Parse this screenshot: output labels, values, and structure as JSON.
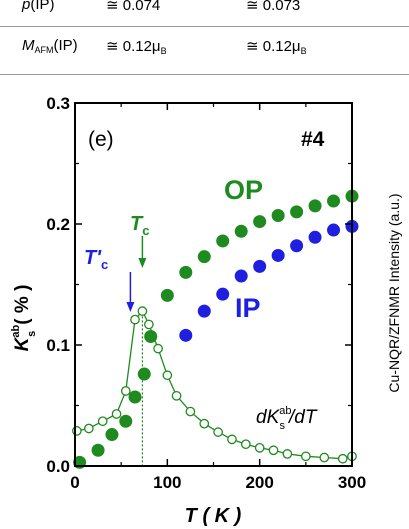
{
  "table": {
    "rows": [
      {
        "param_symbol": "p",
        "param_paren": "(IP)",
        "val1": "≅ 0.074",
        "val2": "≅ 0.073"
      },
      {
        "param_symbol": "M",
        "param_sub": "AFM",
        "param_paren": "(IP)",
        "val1": "≅ 0.12μ",
        "val1_sub": "B",
        "val2": "≅ 0.12μ",
        "val2_sub": "B"
      }
    ]
  },
  "chart_data": {
    "type": "scatter",
    "panel_label": "(e)",
    "sample_label": "#4",
    "xlabel": "T ( K )",
    "ylabel_left": "K",
    "ylabel_left_sup": "ab",
    "ylabel_left_sub": "s",
    "ylabel_left_unit": "( % )",
    "ylabel_right": "Cu-NQR/ZFNMR Intensity (a.u.)",
    "xlim": [
      0,
      300
    ],
    "ylim": [
      0,
      0.3
    ],
    "xticks": [
      "0",
      "100",
      "200",
      "300"
    ],
    "yticks": [
      "0.0",
      "0.1",
      "0.2",
      "0.3"
    ],
    "series": [
      {
        "name": "OP",
        "style": "filled",
        "color": "#1f8a1f",
        "x": [
          5,
          25,
          40,
          55,
          65,
          75,
          82,
          100,
          120,
          140,
          160,
          180,
          200,
          220,
          240,
          260,
          280,
          300
        ],
        "y": [
          0.003,
          0.013,
          0.026,
          0.037,
          0.057,
          0.076,
          0.107,
          0.141,
          0.16,
          0.173,
          0.186,
          0.194,
          0.202,
          0.207,
          0.21,
          0.215,
          0.219,
          0.223
        ]
      },
      {
        "name": "IP",
        "style": "filled",
        "color": "#1f1fe0",
        "x": [
          120,
          140,
          160,
          180,
          200,
          220,
          240,
          260,
          280,
          300
        ],
        "y": [
          0.108,
          0.128,
          0.142,
          0.157,
          0.165,
          0.174,
          0.182,
          0.189,
          0.195,
          0.198
        ]
      },
      {
        "name": "dK/dT",
        "style": "open-line",
        "color": "#1f8a1f",
        "x": [
          2,
          15,
          30,
          45,
          55,
          65,
          73,
          80,
          90,
          100,
          110,
          125,
          140,
          155,
          170,
          185,
          200,
          215,
          230,
          250,
          270,
          290,
          300
        ],
        "y": [
          0.029,
          0.031,
          0.037,
          0.043,
          0.062,
          0.121,
          0.128,
          0.117,
          0.097,
          0.075,
          0.058,
          0.045,
          0.035,
          0.028,
          0.022,
          0.018,
          0.015,
          0.013,
          0.01,
          0.008,
          0.007,
          0.006,
          0.008
        ]
      }
    ],
    "annotations": [
      {
        "text": "OP",
        "color": "#1f8a1f"
      },
      {
        "text": "IP",
        "color": "#1f1fe0"
      },
      {
        "text": "T",
        "sub": "c",
        "color": "#1f8a1f",
        "x": 73
      },
      {
        "text": "T'",
        "sub": "c",
        "color": "#1f1fe0",
        "x": 60
      },
      {
        "text": "dK",
        "sup": "ab",
        "sub": "s",
        "tail": "/dT",
        "color": "#000000"
      }
    ]
  }
}
